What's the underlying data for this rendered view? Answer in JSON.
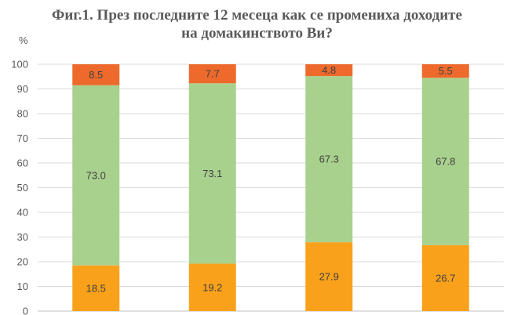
{
  "chart_data": {
    "type": "bar",
    "stacked": true,
    "title_line1": "Фиг.1. През последните 12 месеца как се промениха доходите",
    "title_line2": "на домакинството  Ви?",
    "ylabel": "%",
    "ylim": [
      0,
      100
    ],
    "yticks": [
      "0",
      "10",
      "20",
      "30",
      "40",
      "50",
      "60",
      "70",
      "80",
      "90",
      "100"
    ],
    "grid": true,
    "categories": [
      "",
      "",
      "",
      ""
    ],
    "series": [
      {
        "color": "#F9A11B",
        "values": [
          18.5,
          19.2,
          27.9,
          26.7
        ],
        "labels": [
          "18.5",
          "19.2",
          "27.9",
          "26.7"
        ]
      },
      {
        "color": "#A9D18E",
        "values": [
          73.0,
          73.1,
          67.3,
          67.8
        ],
        "labels": [
          "73.0",
          "73.1",
          "67.3",
          "67.8"
        ]
      },
      {
        "color": "#ED6A2C",
        "values": [
          8.5,
          7.7,
          4.8,
          5.5
        ],
        "labels": [
          "8.5",
          "7.7",
          "4.8",
          "5.5"
        ]
      }
    ]
  }
}
